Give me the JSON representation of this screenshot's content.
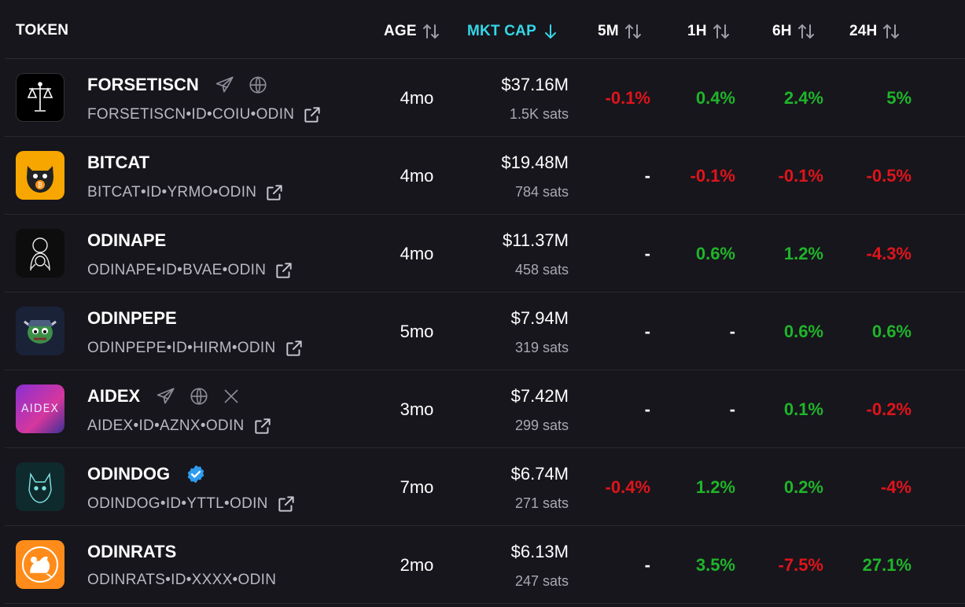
{
  "header": {
    "token": "TOKEN",
    "age": "AGE",
    "mkt_cap": "MKT CAP",
    "m5": "5M",
    "h1": "1H",
    "h6": "6H",
    "h24": "24H"
  },
  "colors": {
    "background": "#17161c",
    "accent": "#35d7e6",
    "positive": "#1fb52a",
    "negative": "#e0141b"
  },
  "rows": [
    {
      "name": "FORSETISCN",
      "ticker": "FORSETISCN•ID•COIU•ODIN",
      "age": "4mo",
      "cap": "$37.16M",
      "sats": "1.5K sats",
      "m5": "-0.1%",
      "h1": "0.4%",
      "h6": "2.4%",
      "h24": "5%",
      "icons": [
        "telegram-icon",
        "globe-icon"
      ],
      "logo": "scales-logo"
    },
    {
      "name": "BITCAT",
      "ticker": "BITCAT•ID•YRMO•ODIN",
      "age": "4mo",
      "cap": "$19.48M",
      "sats": "784 sats",
      "m5": "-",
      "h1": "-0.1%",
      "h6": "-0.1%",
      "h24": "-0.5%",
      "icons": [],
      "logo": "cat-logo"
    },
    {
      "name": "ODINAPE",
      "ticker": "ODINAPE•ID•BVAE•ODIN",
      "age": "4mo",
      "cap": "$11.37M",
      "sats": "458 sats",
      "m5": "-",
      "h1": "0.6%",
      "h6": "1.2%",
      "h24": "-4.3%",
      "icons": [],
      "logo": "ape-logo"
    },
    {
      "name": "ODINPEPE",
      "ticker": "ODINPEPE•ID•HIRM•ODIN",
      "age": "5mo",
      "cap": "$7.94M",
      "sats": "319 sats",
      "m5": "-",
      "h1": "-",
      "h6": "0.6%",
      "h24": "0.6%",
      "icons": [],
      "logo": "pepe-logo"
    },
    {
      "name": "AIDEX",
      "ticker": "AIDEX•ID•AZNX•ODIN",
      "age": "3mo",
      "cap": "$7.42M",
      "sats": "299 sats",
      "m5": "-",
      "h1": "-",
      "h6": "0.1%",
      "h24": "-0.2%",
      "icons": [
        "telegram-icon",
        "globe-icon",
        "x-icon"
      ],
      "logo": "aidex-logo",
      "logo_text": "AIDEX"
    },
    {
      "name": "ODINDOG",
      "ticker": "ODINDOG•ID•YTTL•ODIN",
      "age": "7mo",
      "cap": "$6.74M",
      "sats": "271 sats",
      "m5": "-0.4%",
      "h1": "1.2%",
      "h6": "0.2%",
      "h24": "-4%",
      "icons": [
        "verified-icon"
      ],
      "logo": "dog-logo"
    },
    {
      "name": "ODINRATS",
      "ticker": "ODINRATS•ID•XXXX•ODIN",
      "age": "2mo",
      "cap": "$6.13M",
      "sats": "247 sats",
      "m5": "-",
      "h1": "3.5%",
      "h6": "-7.5%",
      "h24": "27.1%",
      "icons": [],
      "logo": "rat-logo"
    }
  ]
}
